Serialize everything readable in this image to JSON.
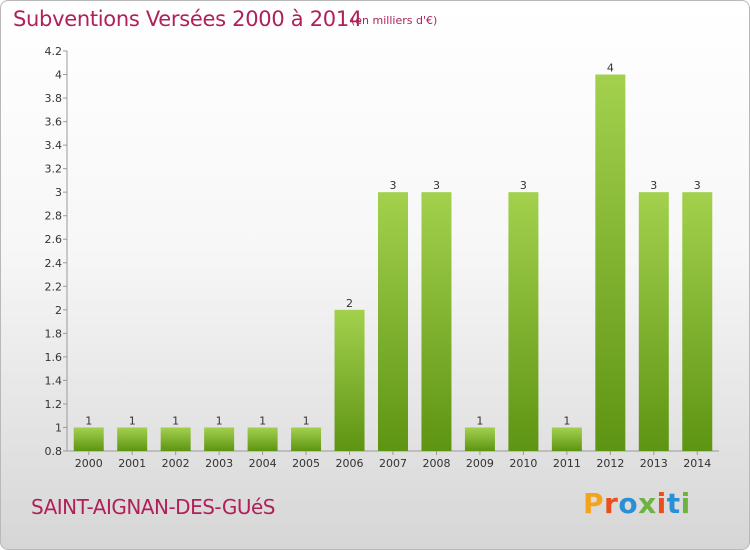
{
  "header": {
    "title": "Subventions Versées 2000 à 2014",
    "subtitle": "(en milliers d'€)"
  },
  "footer": {
    "town": "SAINT-AIGNAN-DES-GUéS",
    "logo_text": "Proxiti"
  },
  "colors": {
    "title": "#b0205a",
    "bar_top": "#a3d14e",
    "bar_bottom": "#5e9413",
    "logo_letters": [
      "#f7a21b",
      "#e94e1b",
      "#2a8fd4",
      "#6cb33f",
      "#e94e1b",
      "#2a8fd4",
      "#6cb33f"
    ]
  },
  "chart_data": {
    "type": "bar",
    "categories": [
      "2000",
      "2001",
      "2002",
      "2003",
      "2004",
      "2005",
      "2006",
      "2007",
      "2008",
      "2009",
      "2010",
      "2011",
      "2012",
      "2013",
      "2014"
    ],
    "values": [
      1,
      1,
      1,
      1,
      1,
      1,
      2,
      3,
      3,
      1,
      3,
      1,
      4,
      3,
      3
    ],
    "data_labels": [
      "1",
      "1",
      "1",
      "1",
      "1",
      "1",
      "2",
      "3",
      "3",
      "1",
      "3",
      "1",
      "4",
      "3",
      "3"
    ],
    "ylim": [
      0.8,
      4.2
    ],
    "yticks": [
      "0.8",
      "1",
      "1.2",
      "1.4",
      "1.6",
      "1.8",
      "2",
      "2.2",
      "2.4",
      "2.6",
      "2.8",
      "3",
      "3.2",
      "3.4",
      "3.6",
      "3.8",
      "4",
      "4.2"
    ],
    "ytick_values": [
      0.8,
      1,
      1.2,
      1.4,
      1.6,
      1.8,
      2,
      2.2,
      2.4,
      2.6,
      2.8,
      3,
      3.2,
      3.4,
      3.6,
      3.8,
      4,
      4.2
    ],
    "grid": false,
    "legend": "none"
  }
}
